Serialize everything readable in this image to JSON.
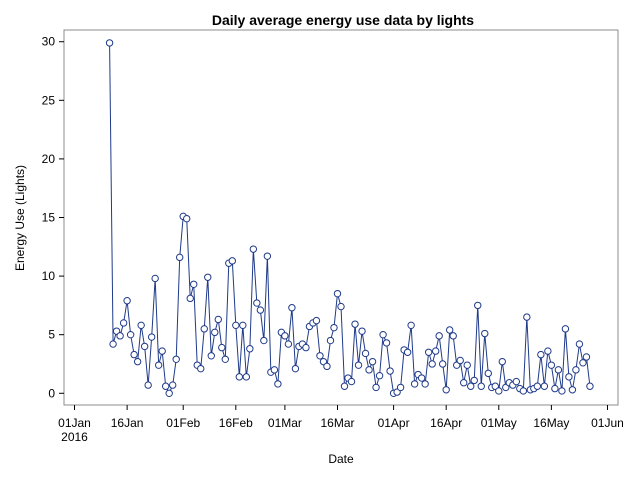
{
  "chart_data": {
    "type": "line",
    "title": "Daily average energy use data by lights",
    "xlabel": "Date",
    "ylabel": "Energy Use (Lights)",
    "xlim": [
      "2015-12-29",
      "2016-06-04"
    ],
    "ylim": [
      -1,
      31
    ],
    "grid": false,
    "legend": "none",
    "colors": {
      "series": "#1f3a8a",
      "frame": "#8c8c8c"
    },
    "x_ticks": [
      {
        "date": "2016-01-01",
        "label": "01Jan",
        "sublabel": "2016"
      },
      {
        "date": "2016-01-16",
        "label": "16Jan"
      },
      {
        "date": "2016-02-01",
        "label": "01Feb"
      },
      {
        "date": "2016-02-16",
        "label": "16Feb"
      },
      {
        "date": "2016-03-01",
        "label": "01Mar"
      },
      {
        "date": "2016-03-16",
        "label": "16Mar"
      },
      {
        "date": "2016-04-01",
        "label": "01Apr"
      },
      {
        "date": "2016-04-16",
        "label": "16Apr"
      },
      {
        "date": "2016-05-01",
        "label": "01May"
      },
      {
        "date": "2016-05-16",
        "label": "16May"
      },
      {
        "date": "2016-06-01",
        "label": "01Jun"
      }
    ],
    "y_ticks": [
      0,
      5,
      10,
      15,
      20,
      25,
      30
    ],
    "series": [
      {
        "values": [
          [
            "2016-01-11",
            29.9
          ],
          [
            "2016-01-12",
            4.2
          ],
          [
            "2016-01-13",
            5.3
          ],
          [
            "2016-01-14",
            4.9
          ],
          [
            "2016-01-15",
            6.0
          ],
          [
            "2016-01-16",
            7.9
          ],
          [
            "2016-01-17",
            5.0
          ],
          [
            "2016-01-18",
            3.3
          ],
          [
            "2016-01-19",
            2.7
          ],
          [
            "2016-01-20",
            5.8
          ],
          [
            "2016-01-21",
            4.0
          ],
          [
            "2016-01-22",
            0.7
          ],
          [
            "2016-01-23",
            4.8
          ],
          [
            "2016-01-24",
            9.8
          ],
          [
            "2016-01-25",
            2.4
          ],
          [
            "2016-01-26",
            3.6
          ],
          [
            "2016-01-27",
            0.6
          ],
          [
            "2016-01-28",
            0.0
          ],
          [
            "2016-01-29",
            0.7
          ],
          [
            "2016-01-30",
            2.9
          ],
          [
            "2016-01-31",
            11.6
          ],
          [
            "2016-02-01",
            15.1
          ],
          [
            "2016-02-02",
            14.9
          ],
          [
            "2016-02-03",
            8.1
          ],
          [
            "2016-02-04",
            9.3
          ],
          [
            "2016-02-05",
            2.4
          ],
          [
            "2016-02-06",
            2.1
          ],
          [
            "2016-02-07",
            5.5
          ],
          [
            "2016-02-08",
            9.9
          ],
          [
            "2016-02-09",
            3.2
          ],
          [
            "2016-02-10",
            5.2
          ],
          [
            "2016-02-11",
            6.3
          ],
          [
            "2016-02-12",
            3.9
          ],
          [
            "2016-02-13",
            2.9
          ],
          [
            "2016-02-14",
            11.1
          ],
          [
            "2016-02-15",
            11.3
          ],
          [
            "2016-02-16",
            5.8
          ],
          [
            "2016-02-17",
            1.4
          ],
          [
            "2016-02-18",
            5.8
          ],
          [
            "2016-02-19",
            1.4
          ],
          [
            "2016-02-20",
            3.8
          ],
          [
            "2016-02-21",
            12.3
          ],
          [
            "2016-02-22",
            7.7
          ],
          [
            "2016-02-23",
            7.1
          ],
          [
            "2016-02-24",
            4.5
          ],
          [
            "2016-02-25",
            11.7
          ],
          [
            "2016-02-26",
            1.8
          ],
          [
            "2016-02-27",
            2.0
          ],
          [
            "2016-02-28",
            0.8
          ],
          [
            "2016-02-29",
            5.2
          ],
          [
            "2016-03-01",
            4.9
          ],
          [
            "2016-03-02",
            4.2
          ],
          [
            "2016-03-03",
            7.3
          ],
          [
            "2016-03-04",
            2.1
          ],
          [
            "2016-03-05",
            4.0
          ],
          [
            "2016-03-06",
            4.2
          ],
          [
            "2016-03-07",
            3.9
          ],
          [
            "2016-03-08",
            5.7
          ],
          [
            "2016-03-09",
            6.0
          ],
          [
            "2016-03-10",
            6.2
          ],
          [
            "2016-03-11",
            3.2
          ],
          [
            "2016-03-12",
            2.7
          ],
          [
            "2016-03-13",
            2.3
          ],
          [
            "2016-03-14",
            4.5
          ],
          [
            "2016-03-15",
            5.6
          ],
          [
            "2016-03-16",
            8.5
          ],
          [
            "2016-03-17",
            7.4
          ],
          [
            "2016-03-18",
            0.6
          ],
          [
            "2016-03-19",
            1.3
          ],
          [
            "2016-03-20",
            1.0
          ],
          [
            "2016-03-21",
            5.9
          ],
          [
            "2016-03-22",
            2.4
          ],
          [
            "2016-03-23",
            5.3
          ],
          [
            "2016-03-24",
            3.4
          ],
          [
            "2016-03-25",
            2.0
          ],
          [
            "2016-03-26",
            2.7
          ],
          [
            "2016-03-27",
            0.5
          ],
          [
            "2016-03-28",
            1.5
          ],
          [
            "2016-03-29",
            5.0
          ],
          [
            "2016-03-30",
            4.3
          ],
          [
            "2016-03-31",
            1.9
          ],
          [
            "2016-04-01",
            0.0
          ],
          [
            "2016-04-02",
            0.1
          ],
          [
            "2016-04-03",
            0.5
          ],
          [
            "2016-04-04",
            3.7
          ],
          [
            "2016-04-05",
            3.5
          ],
          [
            "2016-04-06",
            5.8
          ],
          [
            "2016-04-07",
            0.8
          ],
          [
            "2016-04-08",
            1.6
          ],
          [
            "2016-04-09",
            1.3
          ],
          [
            "2016-04-10",
            0.8
          ],
          [
            "2016-04-11",
            3.5
          ],
          [
            "2016-04-12",
            2.5
          ],
          [
            "2016-04-13",
            3.6
          ],
          [
            "2016-04-14",
            4.9
          ],
          [
            "2016-04-15",
            2.5
          ],
          [
            "2016-04-16",
            0.3
          ],
          [
            "2016-04-17",
            5.4
          ],
          [
            "2016-04-18",
            4.9
          ],
          [
            "2016-04-19",
            2.4
          ],
          [
            "2016-04-20",
            2.8
          ],
          [
            "2016-04-21",
            0.9
          ],
          [
            "2016-04-22",
            2.4
          ],
          [
            "2016-04-23",
            0.6
          ],
          [
            "2016-04-24",
            1.1
          ],
          [
            "2016-04-25",
            7.5
          ],
          [
            "2016-04-26",
            0.6
          ],
          [
            "2016-04-27",
            5.1
          ],
          [
            "2016-04-28",
            1.7
          ],
          [
            "2016-04-29",
            0.5
          ],
          [
            "2016-04-30",
            0.6
          ],
          [
            "2016-05-01",
            0.2
          ],
          [
            "2016-05-02",
            2.7
          ],
          [
            "2016-05-03",
            0.5
          ],
          [
            "2016-05-04",
            0.9
          ],
          [
            "2016-05-05",
            0.7
          ],
          [
            "2016-05-06",
            1.0
          ],
          [
            "2016-05-07",
            0.4
          ],
          [
            "2016-05-08",
            0.2
          ],
          [
            "2016-05-09",
            6.5
          ],
          [
            "2016-05-10",
            0.3
          ],
          [
            "2016-05-11",
            0.4
          ],
          [
            "2016-05-12",
            0.6
          ],
          [
            "2016-05-13",
            3.3
          ],
          [
            "2016-05-14",
            0.6
          ],
          [
            "2016-05-15",
            3.6
          ],
          [
            "2016-05-16",
            2.4
          ],
          [
            "2016-05-17",
            0.4
          ],
          [
            "2016-05-18",
            2.0
          ],
          [
            "2016-05-19",
            0.2
          ],
          [
            "2016-05-20",
            5.5
          ],
          [
            "2016-05-21",
            1.4
          ],
          [
            "2016-05-22",
            0.3
          ],
          [
            "2016-05-23",
            2.0
          ],
          [
            "2016-05-24",
            4.2
          ],
          [
            "2016-05-25",
            2.6
          ],
          [
            "2016-05-26",
            3.1
          ],
          [
            "2016-05-27",
            0.6
          ]
        ]
      }
    ]
  }
}
